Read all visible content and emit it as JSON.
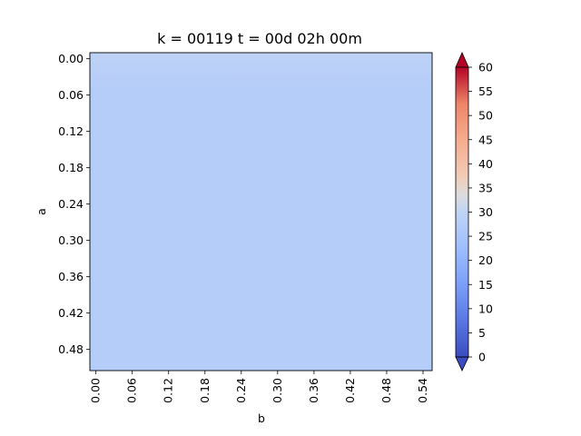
{
  "chart_data": {
    "type": "heatmap",
    "title": "k = 00119 t = 00d 02h 00m",
    "xlabel": "b",
    "ylabel": "a",
    "x_tick_labels": [
      "0.00",
      "0.06",
      "0.12",
      "0.18",
      "0.24",
      "0.30",
      "0.36",
      "0.42",
      "0.48",
      "0.54"
    ],
    "y_tick_labels": [
      "0.00",
      "0.06",
      "0.12",
      "0.18",
      "0.24",
      "0.30",
      "0.36",
      "0.42",
      "0.48"
    ],
    "xlim": [
      -0.01,
      0.555
    ],
    "ylim": [
      0.515,
      -0.01
    ],
    "field": {
      "description_value_range": "approximately uniform",
      "top_row_value": 21,
      "interior_value": 20
    },
    "colorbar": {
      "colormap": "coolwarm",
      "extend": "both",
      "vmin": 0,
      "vmax": 60,
      "tick_labels": [
        "0",
        "5",
        "10",
        "15",
        "20",
        "25",
        "30",
        "35",
        "40",
        "45",
        "50",
        "55",
        "60"
      ]
    }
  }
}
